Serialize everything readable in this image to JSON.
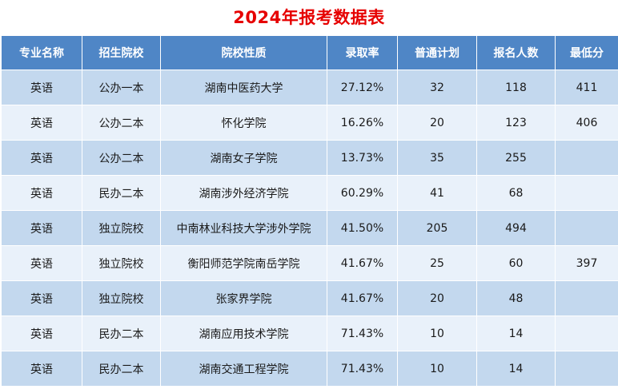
{
  "title": "2024年报考数据表",
  "table": {
    "headers": [
      "专业名称",
      "招生院校",
      "院校性质",
      "录取率",
      "普通计划",
      "报名人数",
      "最低分"
    ],
    "rows": [
      [
        "英语",
        "公办一本",
        "湖南中医药大学",
        "27.12%",
        "32",
        "118",
        "411"
      ],
      [
        "英语",
        "公办二本",
        "怀化学院",
        "16.26%",
        "20",
        "123",
        "406"
      ],
      [
        "英语",
        "公办二本",
        "湖南女子学院",
        "13.73%",
        "35",
        "255",
        ""
      ],
      [
        "英语",
        "民办二本",
        "湖南涉外经济学院",
        "60.29%",
        "41",
        "68",
        ""
      ],
      [
        "英语",
        "独立院校",
        "中南林业科技大学涉外学院",
        "41.50%",
        "205",
        "494",
        ""
      ],
      [
        "英语",
        "独立院校",
        "衡阳师范学院南岳学院",
        "41.67%",
        "25",
        "60",
        "397"
      ],
      [
        "英语",
        "独立院校",
        "张家界学院",
        "41.67%",
        "20",
        "48",
        ""
      ],
      [
        "英语",
        "民办二本",
        "湖南应用技术学院",
        "71.43%",
        "10",
        "14",
        ""
      ],
      [
        "英语",
        "民办二本",
        "湖南交通工程学院",
        "71.43%",
        "10",
        "14",
        ""
      ]
    ]
  },
  "colors": {
    "title": "#e60000",
    "header_bg": "#4f86c6",
    "row_odd": "#c3d8ee",
    "row_even": "#e9f1fa"
  }
}
